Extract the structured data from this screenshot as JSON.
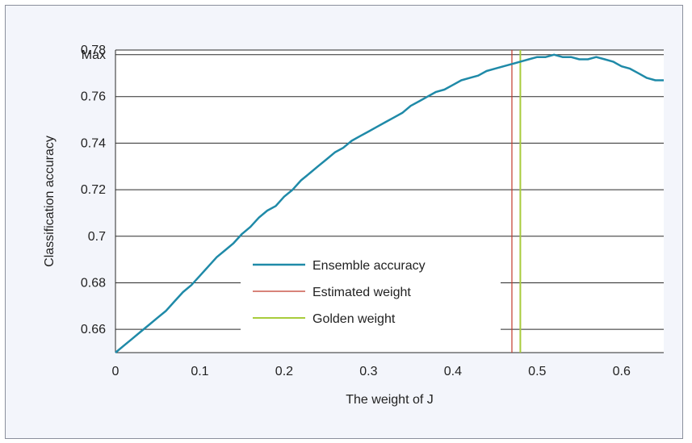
{
  "chart_data": {
    "type": "line",
    "title": "",
    "xlabel": "The weight of J",
    "ylabel": "Classification accuracy",
    "xlim": [
      0,
      0.65
    ],
    "ylim": [
      0.65,
      0.78
    ],
    "x_ticks": [
      0,
      0.1,
      0.2,
      0.3,
      0.4,
      0.5,
      0.6
    ],
    "x_tick_labels": [
      "0",
      "0.1",
      "0.2",
      "0.3",
      "0.4",
      "0.5",
      "0.6"
    ],
    "y_ticks": [
      0.66,
      0.68,
      0.7,
      0.72,
      0.74,
      0.76,
      0.778,
      0.78
    ],
    "y_tick_labels": [
      "0.66",
      "0.68",
      "0.7",
      "0.72",
      "0.74",
      "0.76",
      "Max",
      "0.78"
    ],
    "grid": "horizontal",
    "legend_position": "center",
    "series": [
      {
        "name": "Ensemble accuracy",
        "color": "#1f8aa8",
        "x": [
          0,
          0.01,
          0.02,
          0.03,
          0.04,
          0.05,
          0.06,
          0.07,
          0.08,
          0.09,
          0.1,
          0.11,
          0.12,
          0.13,
          0.14,
          0.15,
          0.16,
          0.17,
          0.18,
          0.19,
          0.2,
          0.21,
          0.22,
          0.23,
          0.24,
          0.25,
          0.26,
          0.27,
          0.28,
          0.29,
          0.3,
          0.31,
          0.32,
          0.33,
          0.34,
          0.35,
          0.36,
          0.37,
          0.38,
          0.39,
          0.4,
          0.41,
          0.42,
          0.43,
          0.44,
          0.45,
          0.46,
          0.47,
          0.48,
          0.49,
          0.5,
          0.51,
          0.52,
          0.53,
          0.54,
          0.55,
          0.56,
          0.57,
          0.58,
          0.59,
          0.6,
          0.61,
          0.62,
          0.63,
          0.64,
          0.65
        ],
        "values": [
          0.65,
          0.653,
          0.656,
          0.659,
          0.662,
          0.665,
          0.668,
          0.672,
          0.676,
          0.679,
          0.683,
          0.687,
          0.691,
          0.694,
          0.697,
          0.701,
          0.704,
          0.708,
          0.711,
          0.713,
          0.717,
          0.72,
          0.724,
          0.727,
          0.73,
          0.733,
          0.736,
          0.738,
          0.741,
          0.743,
          0.745,
          0.747,
          0.749,
          0.751,
          0.753,
          0.756,
          0.758,
          0.76,
          0.762,
          0.763,
          0.765,
          0.767,
          0.768,
          0.769,
          0.771,
          0.772,
          0.773,
          0.774,
          0.775,
          0.776,
          0.777,
          0.777,
          0.778,
          0.777,
          0.777,
          0.776,
          0.776,
          0.777,
          0.776,
          0.775,
          0.773,
          0.772,
          0.77,
          0.768,
          0.767,
          0.767
        ]
      }
    ],
    "vlines": [
      {
        "name": "Estimated weight",
        "x": 0.47,
        "color": "#c0392b"
      },
      {
        "name": "Golden weight",
        "x": 0.48,
        "color": "#a8cc3c"
      }
    ]
  }
}
